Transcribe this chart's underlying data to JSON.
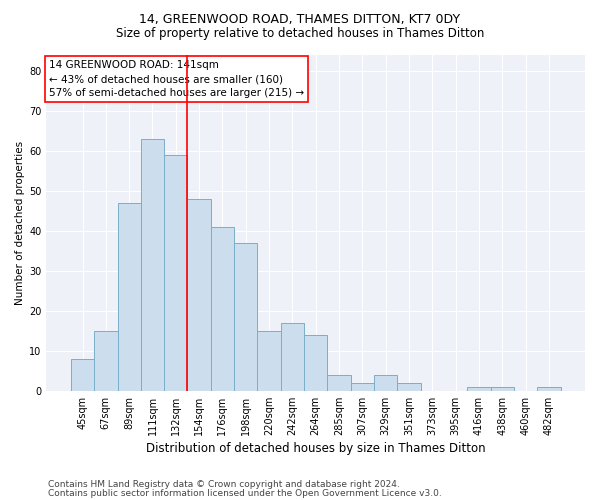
{
  "title1": "14, GREENWOOD ROAD, THAMES DITTON, KT7 0DY",
  "title2": "Size of property relative to detached houses in Thames Ditton",
  "xlabel": "Distribution of detached houses by size in Thames Ditton",
  "ylabel": "Number of detached properties",
  "categories": [
    "45sqm",
    "67sqm",
    "89sqm",
    "111sqm",
    "132sqm",
    "154sqm",
    "176sqm",
    "198sqm",
    "220sqm",
    "242sqm",
    "264sqm",
    "285sqm",
    "307sqm",
    "329sqm",
    "351sqm",
    "373sqm",
    "395sqm",
    "416sqm",
    "438sqm",
    "460sqm",
    "482sqm"
  ],
  "values": [
    8,
    15,
    47,
    63,
    59,
    48,
    41,
    37,
    15,
    17,
    14,
    4,
    2,
    4,
    2,
    0,
    0,
    1,
    1,
    0,
    1
  ],
  "bar_color": "#ccdded",
  "bar_edge_color": "#7aaec8",
  "red_line_index": 4.5,
  "annotation_line1": "14 GREENWOOD ROAD: 141sqm",
  "annotation_line2": "← 43% of detached houses are smaller (160)",
  "annotation_line3": "57% of semi-detached houses are larger (215) →",
  "annotation_box_color": "white",
  "annotation_box_edge": "red",
  "ylim": [
    0,
    84
  ],
  "yticks": [
    0,
    10,
    20,
    30,
    40,
    50,
    60,
    70,
    80
  ],
  "footer1": "Contains HM Land Registry data © Crown copyright and database right 2024.",
  "footer2": "Contains public sector information licensed under the Open Government Licence v3.0.",
  "bg_color": "#ffffff",
  "plot_bg_color": "#eef2f8",
  "grid_color": "#ffffff",
  "title1_fontsize": 9,
  "title2_fontsize": 8.5,
  "xlabel_fontsize": 8.5,
  "ylabel_fontsize": 7.5,
  "tick_fontsize": 7,
  "annotation_fontsize": 7.5,
  "footer_fontsize": 6.5
}
